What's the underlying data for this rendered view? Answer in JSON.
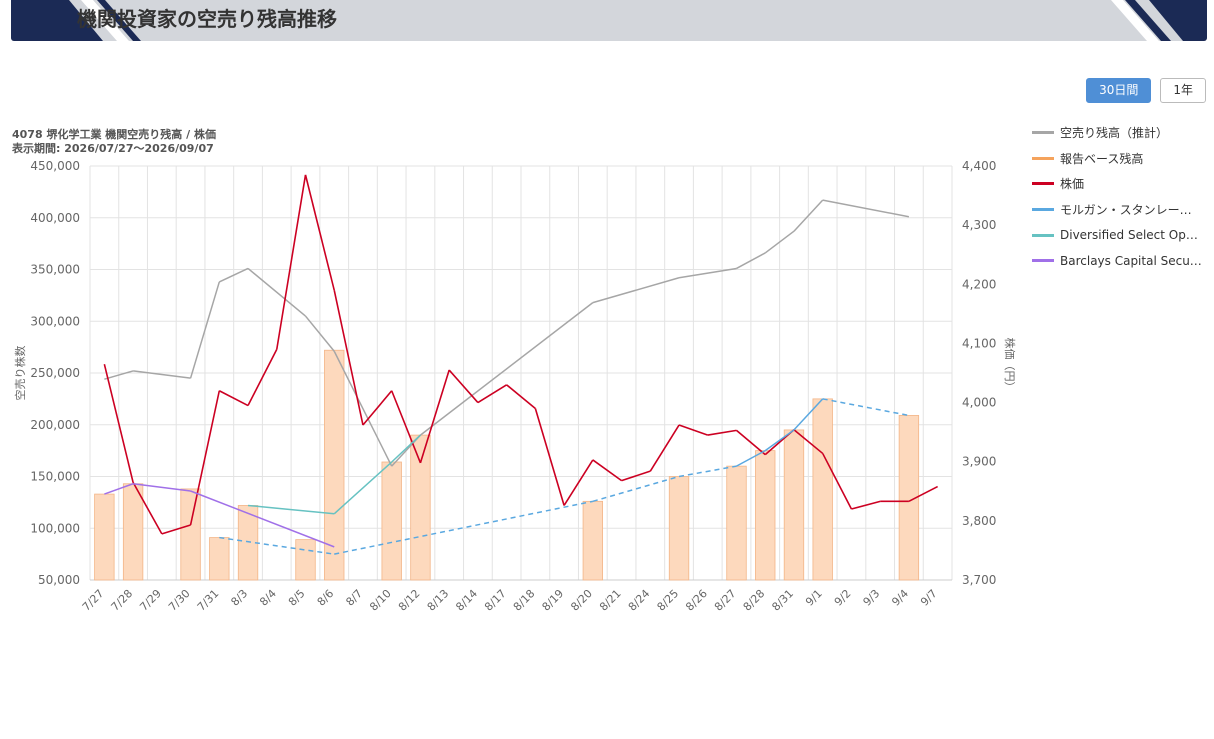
{
  "header": {
    "title": "機関投資家の空売り残高推移"
  },
  "tabs": [
    {
      "label": "30日間",
      "active": true
    },
    {
      "label": "1年",
      "active": false
    }
  ],
  "chart_info": {
    "line1": "4078 堺化学工業 機関空売り残高 / 株価",
    "line2": "表示期間: 2026/07/27〜2026/09/07"
  },
  "legend": [
    {
      "label": "空売り残高（推計）",
      "color": "#a6a6a6"
    },
    {
      "label": "報告ベース残高",
      "color": "#f5a35c"
    },
    {
      "label": "株価",
      "color": "#cc0022"
    },
    {
      "label": "モルガン・スタンレー…",
      "color": "#5aa8e0"
    },
    {
      "label": "Diversified Select Opp…",
      "color": "#66c2c2"
    },
    {
      "label": "Barclays Capital Secu…",
      "color": "#a070e8"
    }
  ],
  "chart_data": {
    "type": "bar",
    "categories": [
      "7/27",
      "7/28",
      "7/29",
      "7/30",
      "7/31",
      "8/3",
      "8/4",
      "8/5",
      "8/6",
      "8/7",
      "8/10",
      "8/12",
      "8/13",
      "8/14",
      "8/17",
      "8/18",
      "8/19",
      "8/20",
      "8/21",
      "8/24",
      "8/25",
      "8/26",
      "8/27",
      "8/28",
      "8/31",
      "9/1",
      "9/2",
      "9/3",
      "9/4",
      "9/7"
    ],
    "ylabel": "空売り株数",
    "y2label": "株価（円）",
    "ylim": [
      50000,
      450000
    ],
    "y2lim": [
      3700,
      4400
    ],
    "yticks": [
      "50,000",
      "100,000",
      "150,000",
      "200,000",
      "250,000",
      "300,000",
      "350,000",
      "400,000",
      "450,000"
    ],
    "y2ticks": [
      "3,700",
      "3,800",
      "3,900",
      "4,000",
      "4,100",
      "4,200",
      "4,300",
      "4,400"
    ],
    "grid": true,
    "legend_position": "right",
    "series": [
      {
        "name": "報告ベース残高",
        "kind": "bar",
        "axis": "left",
        "color": "#f5a35c",
        "values": [
          133000,
          143000,
          null,
          138000,
          91000,
          122000,
          null,
          89000,
          272000,
          null,
          164000,
          190000,
          null,
          null,
          null,
          null,
          null,
          126000,
          null,
          null,
          150000,
          null,
          160000,
          175000,
          195000,
          225000,
          null,
          null,
          209000,
          null
        ]
      },
      {
        "name": "空売り残高（推計）",
        "kind": "line",
        "axis": "left",
        "color": "#a6a6a6",
        "values": [
          244000,
          252000,
          null,
          245000,
          338000,
          351000,
          null,
          305000,
          271000,
          null,
          160000,
          190000,
          null,
          null,
          null,
          null,
          null,
          318000,
          null,
          null,
          342000,
          null,
          351000,
          366000,
          387000,
          417000,
          null,
          null,
          401000,
          null
        ],
        "connect_gaps": true
      },
      {
        "name": "株価",
        "kind": "line",
        "axis": "right",
        "color": "#cc0022",
        "values": [
          4065,
          3865,
          3778,
          3793,
          4020,
          3995,
          4090,
          4385,
          4190,
          3962,
          4020,
          3898,
          4055,
          4000,
          4030,
          3990,
          3826,
          3903,
          3868,
          3884,
          3962,
          3945,
          3953,
          3912,
          3954,
          3914,
          3820,
          3833,
          3833,
          3858
        ]
      },
      {
        "name": "モルガン・スタンレー…",
        "kind": "line",
        "axis": "left",
        "color": "#5aa8e0",
        "values": [
          null,
          null,
          null,
          null,
          91000,
          null,
          null,
          null,
          75000,
          null,
          null,
          null,
          null,
          null,
          null,
          null,
          null,
          126000,
          null,
          null,
          150000,
          null,
          160000,
          175000,
          195000,
          225000,
          null,
          null,
          209000,
          null
        ],
        "dashed_gaps": true
      },
      {
        "name": "Diversified Select Opp…",
        "kind": "line",
        "axis": "left",
        "color": "#66c2c2",
        "values": [
          null,
          null,
          null,
          null,
          null,
          122000,
          null,
          null,
          114000,
          null,
          164000,
          190000,
          null,
          null,
          null,
          null,
          null,
          null,
          null,
          null,
          null,
          null,
          null,
          null,
          null,
          null,
          null,
          null,
          null,
          null
        ],
        "connect_gaps": true
      },
      {
        "name": "Barclays Capital Secu…",
        "kind": "line",
        "axis": "left",
        "color": "#a070e8",
        "values": [
          133000,
          143000,
          null,
          136000,
          null,
          null,
          null,
          null,
          82000,
          null,
          null,
          null,
          null,
          null,
          null,
          null,
          null,
          null,
          null,
          null,
          null,
          null,
          null,
          null,
          null,
          null,
          null,
          null,
          null,
          null
        ],
        "connect_gaps": true
      }
    ]
  }
}
